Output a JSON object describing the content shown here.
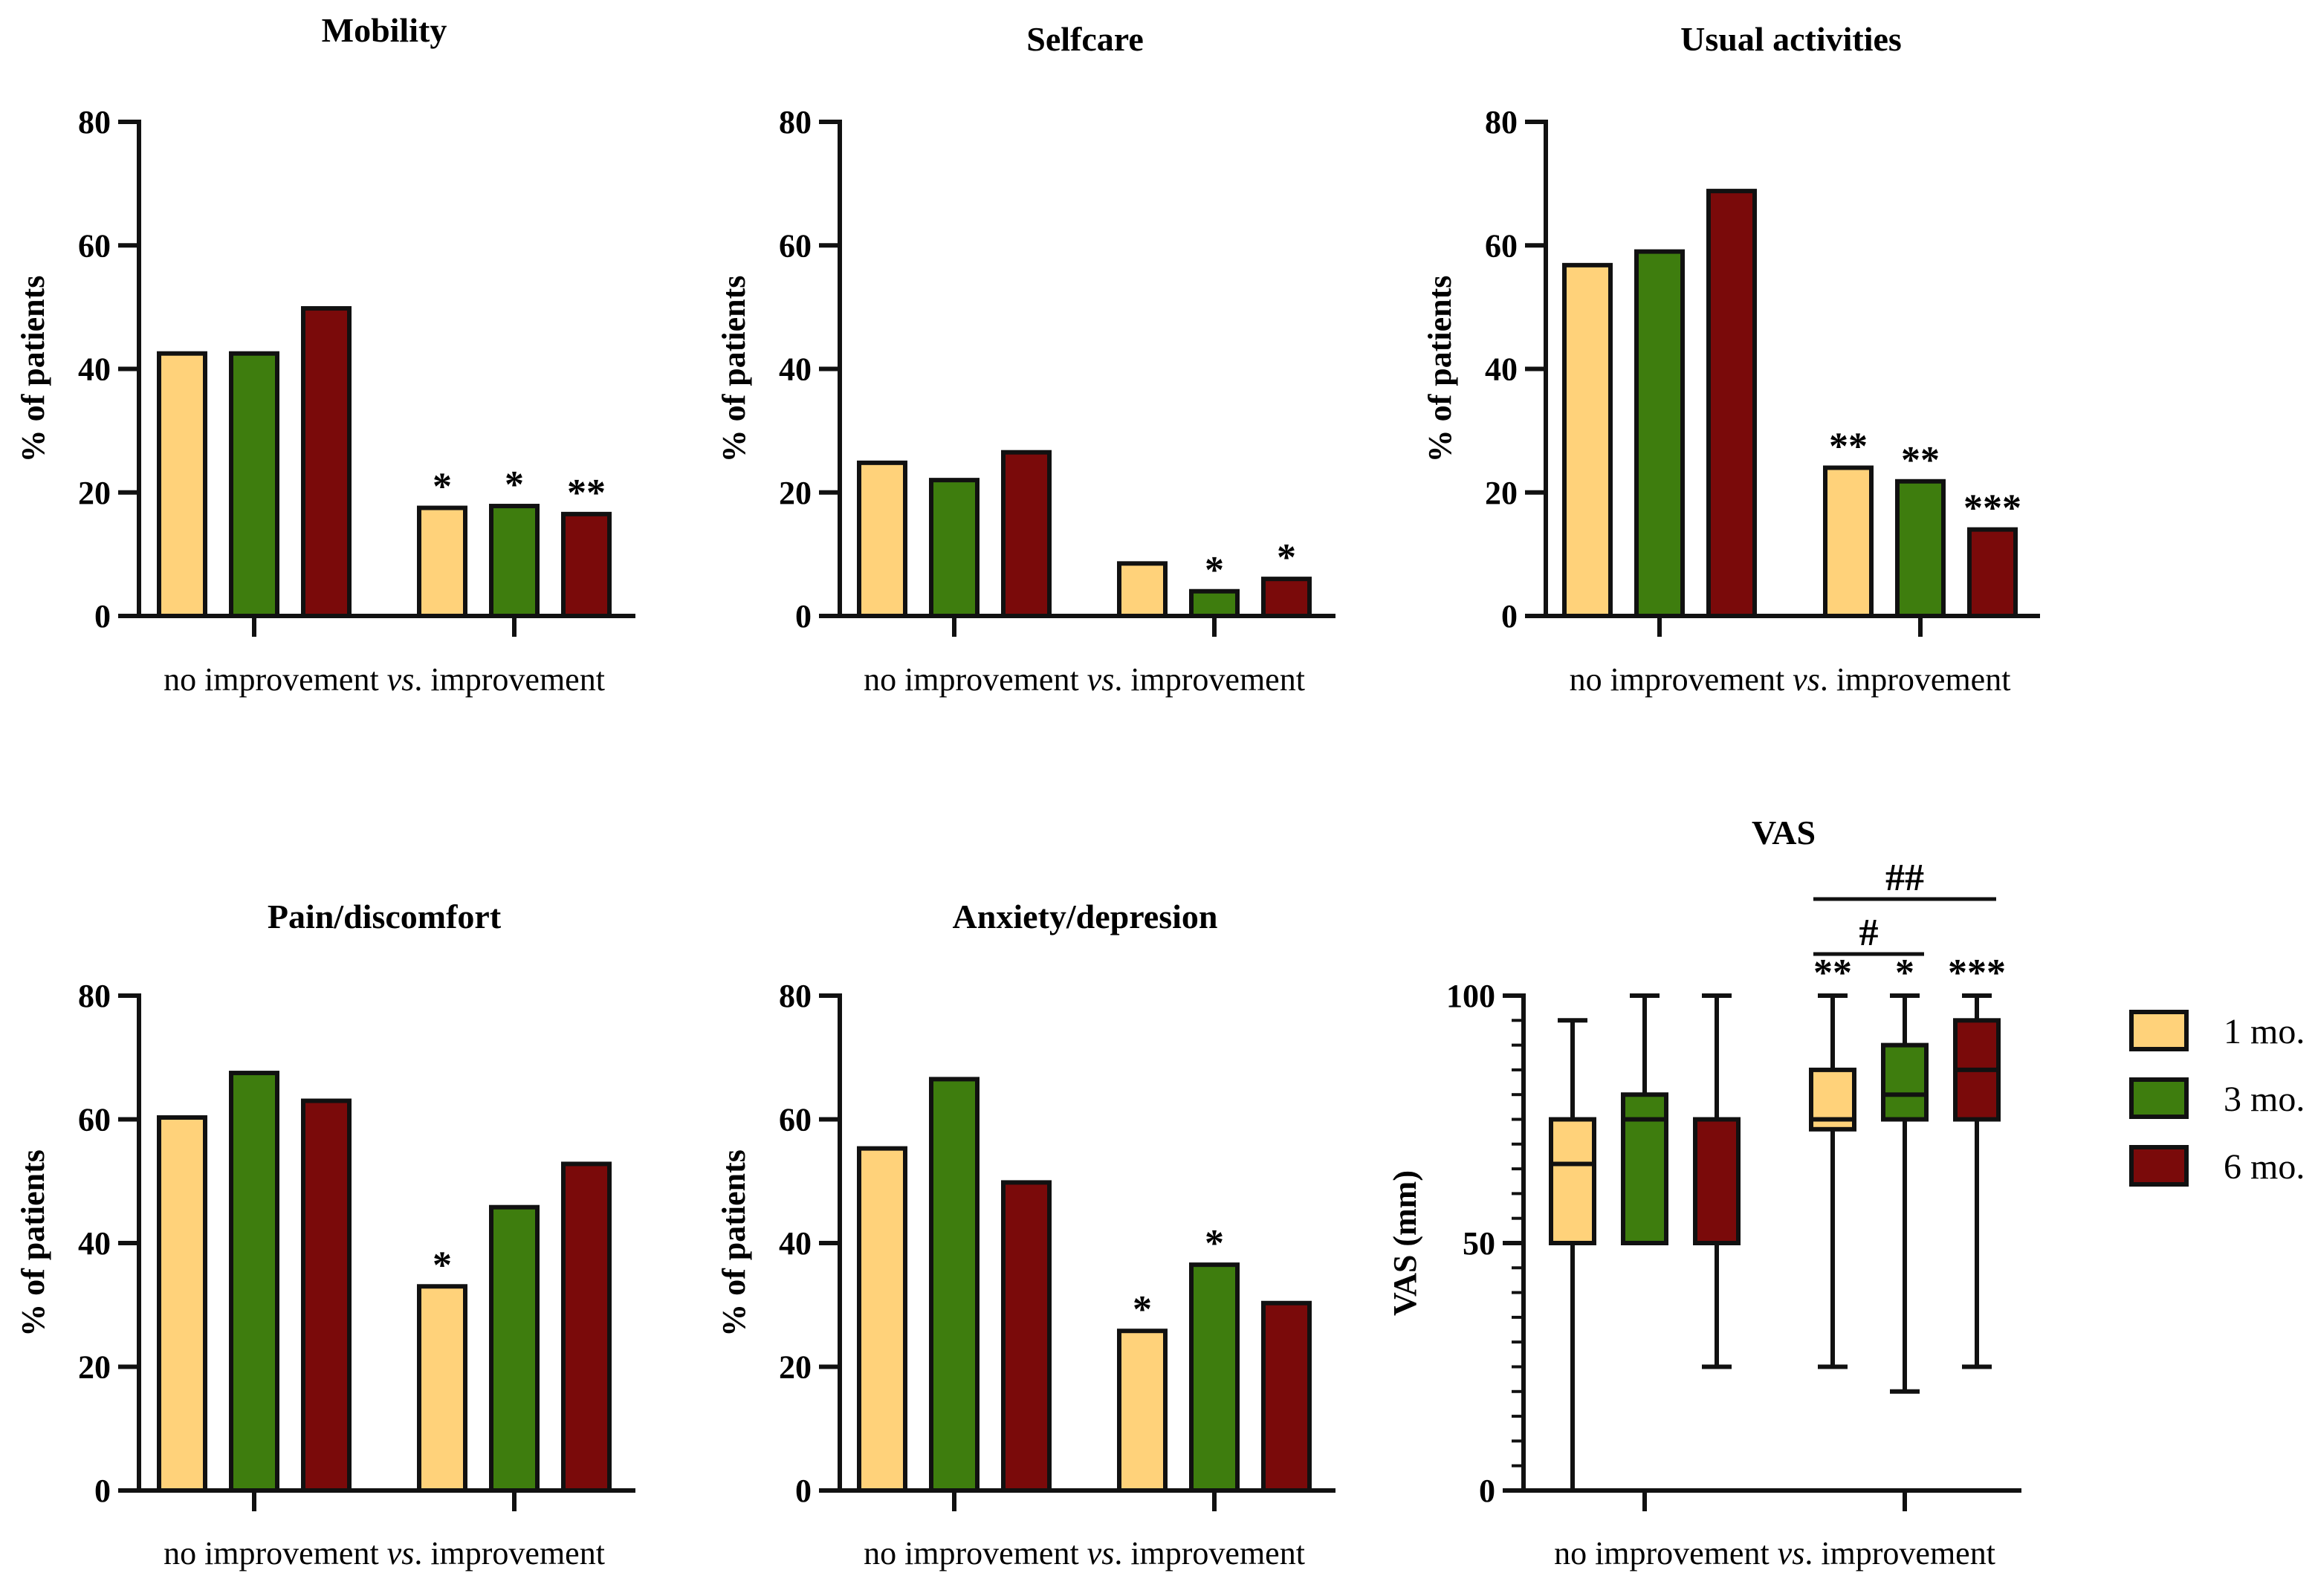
{
  "colors": {
    "1 mo.": "#FFD27A",
    "3 mo.": "#3E7D0E",
    "6 mo.": "#7A0A0A",
    "stroke": "#111111"
  },
  "x_axis_label": {
    "left": "no improvement ",
    "vs": "vs",
    "right": ". improvement"
  },
  "legend": {
    "items": [
      "1 mo.",
      "3 mo.",
      "6 mo."
    ]
  },
  "chart_data": [
    {
      "id": "mobility",
      "type": "bar",
      "title": "Mobility",
      "ylabel": "% of patients",
      "ylim": [
        0,
        80
      ],
      "yticks": [
        0,
        20,
        40,
        60,
        80
      ],
      "groups": [
        "no improvement",
        "improvement"
      ],
      "series": [
        {
          "name": "1 mo.",
          "values": [
            42.5,
            17.5
          ],
          "annot": [
            "",
            "*"
          ]
        },
        {
          "name": "3 mo.",
          "values": [
            42.5,
            17.8
          ],
          "annot": [
            "",
            "*"
          ]
        },
        {
          "name": "6 mo.",
          "values": [
            49.8,
            16.5
          ],
          "annot": [
            "",
            "**"
          ]
        }
      ]
    },
    {
      "id": "selfcare",
      "type": "bar",
      "title": "Selfcare",
      "ylabel": "% of patients",
      "ylim": [
        0,
        80
      ],
      "yticks": [
        0,
        20,
        40,
        60,
        80
      ],
      "groups": [
        "no improvement",
        "improvement"
      ],
      "series": [
        {
          "name": "1 mo.",
          "values": [
            24.8,
            8.5
          ],
          "annot": [
            "",
            ""
          ]
        },
        {
          "name": "3 mo.",
          "values": [
            22.0,
            4.0
          ],
          "annot": [
            "",
            "*"
          ]
        },
        {
          "name": "6 mo.",
          "values": [
            26.5,
            6.0
          ],
          "annot": [
            "",
            "*"
          ]
        }
      ]
    },
    {
      "id": "usual",
      "type": "bar",
      "title": "Usual activities",
      "ylabel": "% of patients",
      "ylim": [
        0,
        80
      ],
      "yticks": [
        0,
        20,
        40,
        60,
        80
      ],
      "groups": [
        "no improvement",
        "improvement"
      ],
      "series": [
        {
          "name": "1 mo.",
          "values": [
            56.8,
            24.0
          ],
          "annot": [
            "",
            "**"
          ]
        },
        {
          "name": "3 mo.",
          "values": [
            59.0,
            21.8
          ],
          "annot": [
            "",
            "**"
          ]
        },
        {
          "name": "6 mo.",
          "values": [
            68.8,
            14.0
          ],
          "annot": [
            "",
            "***"
          ]
        }
      ]
    },
    {
      "id": "pain",
      "type": "bar",
      "title": "Pain/discomfort",
      "ylabel": "% of patients",
      "ylim": [
        0,
        80
      ],
      "yticks": [
        0,
        20,
        40,
        60,
        80
      ],
      "groups": [
        "no improvement",
        "improvement"
      ],
      "series": [
        {
          "name": "1 mo.",
          "values": [
            60.3,
            33.0
          ],
          "annot": [
            "",
            "*"
          ]
        },
        {
          "name": "3 mo.",
          "values": [
            67.5,
            45.8
          ],
          "annot": [
            "",
            ""
          ]
        },
        {
          "name": "6 mo.",
          "values": [
            63.0,
            52.8
          ],
          "annot": [
            "",
            ""
          ]
        }
      ]
    },
    {
      "id": "anxiety",
      "type": "bar",
      "title": "Anxiety/depresion",
      "ylabel": "% of patients",
      "ylim": [
        0,
        80
      ],
      "yticks": [
        0,
        20,
        40,
        60,
        80
      ],
      "groups": [
        "no improvement",
        "improvement"
      ],
      "series": [
        {
          "name": "1 mo.",
          "values": [
            55.3,
            25.8
          ],
          "annot": [
            "",
            "*"
          ]
        },
        {
          "name": "3 mo.",
          "values": [
            66.5,
            36.5
          ],
          "annot": [
            "",
            "*"
          ]
        },
        {
          "name": "6 mo.",
          "values": [
            49.8,
            30.3
          ],
          "annot": [
            "",
            ""
          ]
        }
      ]
    },
    {
      "id": "vas",
      "type": "box",
      "title": "VAS",
      "ylabel": "VAS (mm)",
      "ylim": [
        0,
        100
      ],
      "yticks": [
        0,
        50,
        100
      ],
      "minor_step": 5,
      "groups": [
        "no improvement",
        "improvement"
      ],
      "series": [
        {
          "name": "1 mo.",
          "boxes": [
            {
              "min": 0,
              "q1": 50,
              "median": 66,
              "q3": 75,
              "max": 95,
              "annot": ""
            },
            {
              "min": 25,
              "q1": 73,
              "median": 75,
              "q3": 85,
              "max": 100,
              "annot": "**"
            }
          ]
        },
        {
          "name": "3 mo.",
          "boxes": [
            {
              "min": 50,
              "q1": 50,
              "median": 75,
              "q3": 80,
              "max": 100,
              "annot": ""
            },
            {
              "min": 20,
              "q1": 75,
              "median": 80,
              "q3": 90,
              "max": 100,
              "annot": "*"
            }
          ]
        },
        {
          "name": "6 mo.",
          "boxes": [
            {
              "min": 25,
              "q1": 50,
              "median": 75,
              "q3": 75,
              "max": 100,
              "annot": ""
            },
            {
              "min": 25,
              "q1": 75,
              "median": 85,
              "q3": 95,
              "max": 100,
              "annot": "***"
            }
          ]
        }
      ],
      "brackets": [
        {
          "from": "1 mo.",
          "to": "3 mo.",
          "group": "improvement",
          "label": "#"
        },
        {
          "from": "1 mo.",
          "to": "6 mo.",
          "group": "improvement",
          "label": "##"
        }
      ]
    }
  ]
}
